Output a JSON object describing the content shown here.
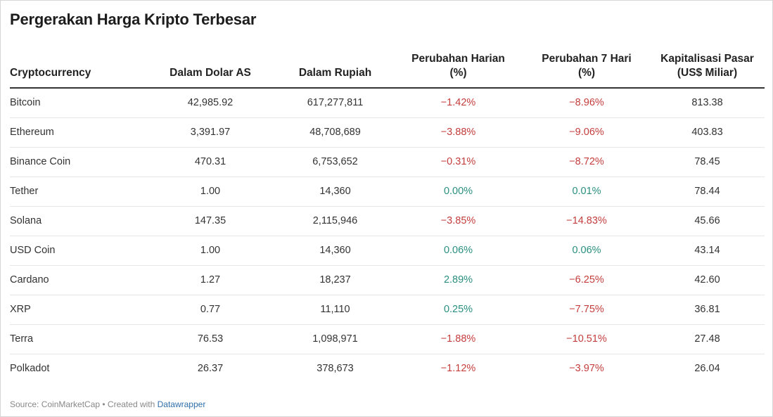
{
  "title": "Pergerakan Harga Kripto Terbesar",
  "chart_data": {
    "type": "table",
    "columns": [
      "Cryptocurrency",
      "Dalam Dolar AS",
      "Dalam Rupiah",
      "Perubahan Harian (%)",
      "Perubahan 7 Hari (%)",
      "Kapitalisasi Pasar (US$ Miliar)"
    ],
    "rows": [
      [
        "Bitcoin",
        "42,985.92",
        "617,277,811",
        "−1.42%",
        "−8.96%",
        "813.38"
      ],
      [
        "Ethereum",
        "3,391.97",
        "48,708,689",
        "−3.88%",
        "−9.06%",
        "403.83"
      ],
      [
        "Binance Coin",
        "470.31",
        "6,753,652",
        "−0.31%",
        "−8.72%",
        "78.45"
      ],
      [
        "Tether",
        "1.00",
        "14,360",
        "0.00%",
        "0.01%",
        "78.44"
      ],
      [
        "Solana",
        "147.35",
        "2,115,946",
        "−3.85%",
        "−14.83%",
        "45.66"
      ],
      [
        "USD Coin",
        "1.00",
        "14,360",
        "0.06%",
        "0.06%",
        "43.14"
      ],
      [
        "Cardano",
        "1.27",
        "18,237",
        "2.89%",
        "−6.25%",
        "42.60"
      ],
      [
        "XRP",
        "0.77",
        "11,110",
        "0.25%",
        "−7.75%",
        "36.81"
      ],
      [
        "Terra",
        "76.53",
        "1,098,971",
        "−1.88%",
        "−10.51%",
        "27.48"
      ],
      [
        "Polkadot",
        "26.37",
        "378,673",
        "−1.12%",
        "−3.97%",
        "26.04"
      ]
    ]
  },
  "header": {
    "c0": "Cryptocurrency",
    "c1": "Dalam Dolar AS",
    "c2": "Dalam Rupiah",
    "c3_line1": "Perubahan Harian",
    "c3_line2": "(%)",
    "c4_line1": "Perubahan 7 Hari",
    "c4_line2": "(%)",
    "c5_line1": "Kapitalisasi Pasar",
    "c5_line2": "(US$ Miliar)"
  },
  "footer": {
    "source": "Source: CoinMarketCap • Created with ",
    "link": "Datawrapper"
  },
  "colors": {
    "negative": "#c43d3d",
    "positive": "#2a8f7f"
  }
}
